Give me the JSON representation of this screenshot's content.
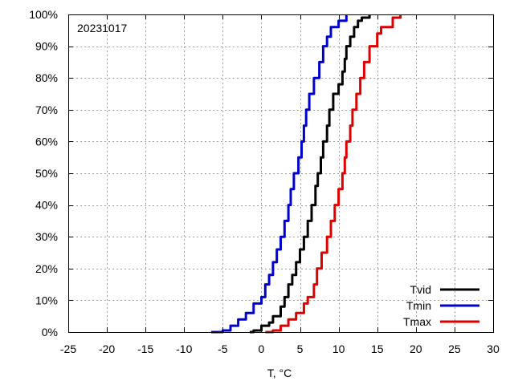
{
  "chart_data": {
    "type": "line",
    "title": "",
    "annotation": "20231017",
    "xlabel": "T, °C",
    "ylabel": "",
    "xlim": [
      -25,
      30
    ],
    "ylim": [
      0,
      100
    ],
    "x_ticks": [
      -25,
      -20,
      -15,
      -10,
      -5,
      0,
      5,
      10,
      15,
      20,
      25,
      30
    ],
    "x_tick_labels": [
      "-25",
      "-20",
      "-15",
      "-10",
      "-5",
      "0",
      "5",
      "10",
      "15",
      "20",
      "25",
      "30"
    ],
    "y_ticks": [
      0,
      10,
      20,
      30,
      40,
      50,
      60,
      70,
      80,
      90,
      100
    ],
    "y_tick_labels": [
      "0%",
      "10%",
      "20%",
      "30%",
      "40%",
      "50%",
      "60%",
      "70%",
      "80%",
      "90%",
      "100%"
    ],
    "grid": true,
    "legend_position": "bottom-right",
    "series": [
      {
        "name": "Tvid",
        "color": "#000000",
        "points": [
          [
            -1.5,
            0
          ],
          [
            -1.0,
            0.5
          ],
          [
            0.0,
            2
          ],
          [
            1.0,
            3
          ],
          [
            1.5,
            5
          ],
          [
            2.5,
            8
          ],
          [
            3.0,
            11
          ],
          [
            3.5,
            15
          ],
          [
            4.0,
            18
          ],
          [
            4.5,
            22
          ],
          [
            5.0,
            26
          ],
          [
            5.5,
            30
          ],
          [
            6.0,
            35
          ],
          [
            6.5,
            40
          ],
          [
            7.0,
            46
          ],
          [
            7.3,
            50
          ],
          [
            7.7,
            55
          ],
          [
            8.0,
            60
          ],
          [
            8.5,
            65
          ],
          [
            8.8,
            70
          ],
          [
            9.3,
            75
          ],
          [
            10.0,
            78
          ],
          [
            10.5,
            82
          ],
          [
            10.8,
            86
          ],
          [
            11.0,
            90
          ],
          [
            11.5,
            93
          ],
          [
            12.0,
            96
          ],
          [
            12.5,
            98
          ],
          [
            13.0,
            99
          ],
          [
            14.0,
            100
          ]
        ]
      },
      {
        "name": "Tmin",
        "color": "#0000cc",
        "points": [
          [
            -6.5,
            0
          ],
          [
            -5.0,
            0.5
          ],
          [
            -4.0,
            2
          ],
          [
            -3.0,
            4
          ],
          [
            -2.0,
            6
          ],
          [
            -1.0,
            9
          ],
          [
            0.0,
            11
          ],
          [
            0.5,
            15
          ],
          [
            1.0,
            18
          ],
          [
            1.5,
            22
          ],
          [
            2.0,
            26
          ],
          [
            2.5,
            30
          ],
          [
            3.0,
            35
          ],
          [
            3.5,
            40
          ],
          [
            3.8,
            45
          ],
          [
            4.2,
            50
          ],
          [
            4.8,
            55
          ],
          [
            5.2,
            60
          ],
          [
            5.5,
            65
          ],
          [
            5.8,
            70
          ],
          [
            6.2,
            75
          ],
          [
            6.8,
            80
          ],
          [
            7.5,
            85
          ],
          [
            8.0,
            90
          ],
          [
            8.5,
            93
          ],
          [
            9.0,
            96
          ],
          [
            10.0,
            98
          ],
          [
            11.0,
            100
          ]
        ]
      },
      {
        "name": "Tmax",
        "color": "#dd0000",
        "points": [
          [
            0.5,
            0
          ],
          [
            1.5,
            0.5
          ],
          [
            2.5,
            2
          ],
          [
            3.5,
            4
          ],
          [
            4.5,
            6
          ],
          [
            5.5,
            9
          ],
          [
            6.0,
            11
          ],
          [
            6.8,
            15
          ],
          [
            7.2,
            20
          ],
          [
            7.8,
            25
          ],
          [
            8.5,
            30
          ],
          [
            9.0,
            35
          ],
          [
            9.5,
            40
          ],
          [
            10.0,
            45
          ],
          [
            10.5,
            50
          ],
          [
            10.8,
            55
          ],
          [
            11.0,
            60
          ],
          [
            11.5,
            65
          ],
          [
            11.8,
            70
          ],
          [
            12.3,
            75
          ],
          [
            12.8,
            80
          ],
          [
            13.3,
            85
          ],
          [
            14.0,
            90
          ],
          [
            15.0,
            94
          ],
          [
            15.5,
            96
          ],
          [
            17.0,
            99
          ],
          [
            18.0,
            100
          ]
        ]
      }
    ]
  }
}
